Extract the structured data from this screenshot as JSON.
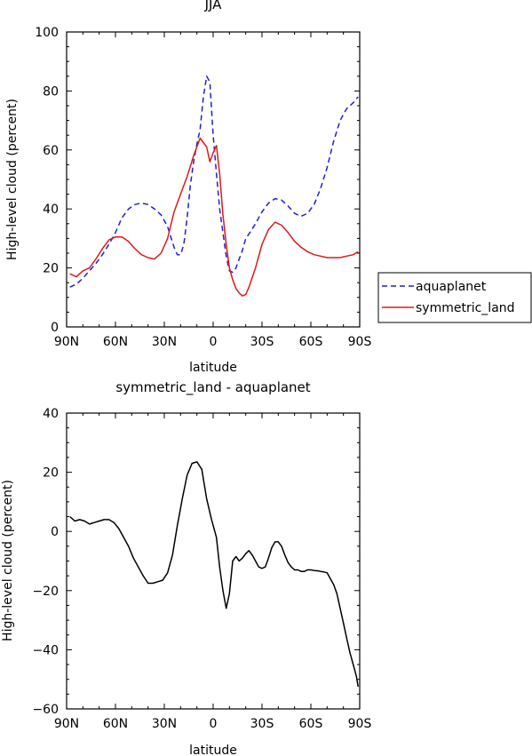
{
  "chart_data": [
    {
      "type": "line",
      "title": "JJA",
      "xlabel": "latitude",
      "ylabel": "High-level cloud (percent)",
      "xlim": [
        90,
        -90
      ],
      "ylim": [
        0,
        100
      ],
      "xticks": [
        90,
        60,
        30,
        0,
        -30,
        -60,
        -90
      ],
      "xtick_labels": [
        "90N",
        "60N",
        "30N",
        "0",
        "30S",
        "60S",
        "90S"
      ],
      "yticks": [
        0,
        20,
        40,
        60,
        80,
        100
      ],
      "ytick_labels": [
        "0",
        "20",
        "40",
        "60",
        "80",
        "100"
      ],
      "legend_position": "right",
      "series": [
        {
          "name": "aquaplanet",
          "color": "#1f1fd6",
          "dash": "dashed",
          "x": [
            88,
            84,
            80,
            76,
            72,
            68,
            64,
            60,
            56,
            52,
            48,
            44,
            40,
            36,
            32,
            28,
            24,
            22,
            20,
            18,
            16,
            14,
            12,
            10,
            8,
            6,
            4,
            2,
            0,
            -2,
            -4,
            -6,
            -8,
            -10,
            -12,
            -14,
            -16,
            -18,
            -20,
            -22,
            -26,
            -30,
            -34,
            -38,
            -42,
            -46,
            -50,
            -54,
            -58,
            -62,
            -66,
            -70,
            -74,
            -78,
            -82,
            -86,
            -89
          ],
          "y": [
            13.5,
            14.5,
            16.5,
            19,
            21.5,
            24.5,
            28,
            32,
            37,
            40,
            41.5,
            42,
            41.5,
            40,
            38,
            34,
            27,
            24.5,
            24.5,
            28,
            37,
            48,
            56,
            62,
            67,
            78,
            85,
            83,
            65,
            52,
            40,
            32,
            24,
            19,
            18.5,
            20,
            23,
            26,
            30,
            31.5,
            35,
            39,
            42,
            43.5,
            43,
            41,
            38.5,
            37.5,
            38.5,
            41.5,
            47,
            54,
            63,
            70,
            74,
            76,
            78
          ]
        },
        {
          "name": "symmetric_land",
          "color": "#e01818",
          "dash": "solid",
          "x": [
            88,
            84,
            80,
            76,
            72,
            68,
            64,
            60,
            56,
            52,
            48,
            44,
            40,
            36,
            32,
            28,
            24,
            20,
            16,
            12,
            8,
            4,
            2,
            0,
            -2,
            -4,
            -6,
            -8,
            -10,
            -12,
            -14,
            -16,
            -18,
            -20,
            -22,
            -26,
            -30,
            -34,
            -38,
            -42,
            -46,
            -50,
            -54,
            -58,
            -62,
            -66,
            -70,
            -74,
            -78,
            -82,
            -86,
            -89
          ],
          "y": [
            18,
            17,
            19,
            20,
            23,
            26.5,
            29.5,
            30.5,
            30.5,
            29,
            26.5,
            24.5,
            23.5,
            23,
            25,
            30,
            39,
            45,
            51,
            58,
            64,
            61,
            56,
            59,
            61.5,
            52,
            38,
            28,
            20,
            16,
            13,
            11.5,
            10.5,
            11,
            13.5,
            20,
            28,
            33,
            35.5,
            34.5,
            32,
            29,
            27,
            25.5,
            24.5,
            24,
            23.5,
            23.5,
            23.5,
            24,
            24.5,
            25.5
          ]
        }
      ]
    },
    {
      "type": "line",
      "title": "symmetric_land - aquaplanet",
      "xlabel": "latitude",
      "ylabel": "High-level cloud (percent)",
      "xlim": [
        90,
        -90
      ],
      "ylim": [
        -60,
        40
      ],
      "xticks": [
        90,
        60,
        30,
        0,
        -30,
        -60,
        -90
      ],
      "xtick_labels": [
        "90N",
        "60N",
        "30N",
        "0",
        "30S",
        "60S",
        "90S"
      ],
      "yticks": [
        -60,
        -40,
        -20,
        0,
        20,
        40
      ],
      "ytick_labels": [
        "−60",
        "−40",
        "−20",
        "0",
        "20",
        "40"
      ],
      "series": [
        {
          "color": "#000000",
          "dash": "solid",
          "x": [
            88,
            85,
            82,
            79,
            76,
            73,
            70,
            67,
            64,
            61,
            58,
            55,
            52,
            49,
            46,
            43,
            40,
            37,
            34,
            31,
            28,
            25,
            22,
            19,
            16,
            13,
            10,
            7,
            4,
            1,
            -2,
            -4,
            -6,
            -8,
            -10,
            -12,
            -14,
            -16,
            -18,
            -20,
            -22,
            -24,
            -26,
            -28,
            -30,
            -32,
            -34,
            -36,
            -38,
            -40,
            -42,
            -44,
            -46,
            -48,
            -50,
            -52,
            -54,
            -56,
            -58,
            -60,
            -62,
            -64,
            -66,
            -68,
            -70,
            -72,
            -74,
            -76,
            -78,
            -80,
            -82,
            -84,
            -86,
            -88,
            -89
          ],
          "y": [
            5,
            3.5,
            4,
            3.5,
            2.5,
            3,
            3.5,
            4,
            4,
            3,
            1,
            -2,
            -5,
            -9,
            -12,
            -15,
            -17.5,
            -17.5,
            -17,
            -16.5,
            -14,
            -8,
            2,
            11,
            19,
            23,
            23.5,
            21,
            11,
            4,
            -2,
            -12,
            -20,
            -26,
            -21,
            -10,
            -8.5,
            -10,
            -9,
            -7.5,
            -6.5,
            -8,
            -10,
            -12,
            -12.5,
            -12,
            -9,
            -5.5,
            -3.5,
            -3.5,
            -5,
            -8,
            -10.5,
            -12,
            -13,
            -13,
            -13.5,
            -13.5,
            -13,
            -13,
            -13.2,
            -13.3,
            -13.5,
            -13.7,
            -14,
            -16,
            -18,
            -21,
            -26,
            -31,
            -36,
            -41,
            -45,
            -49,
            -52.5
          ]
        }
      ]
    }
  ],
  "legend": {
    "items": [
      {
        "label": "aquaplanet",
        "color": "#1f1fd6",
        "dash": "dashed"
      },
      {
        "label": "symmetric_land",
        "color": "#e01818",
        "dash": "solid"
      }
    ]
  }
}
